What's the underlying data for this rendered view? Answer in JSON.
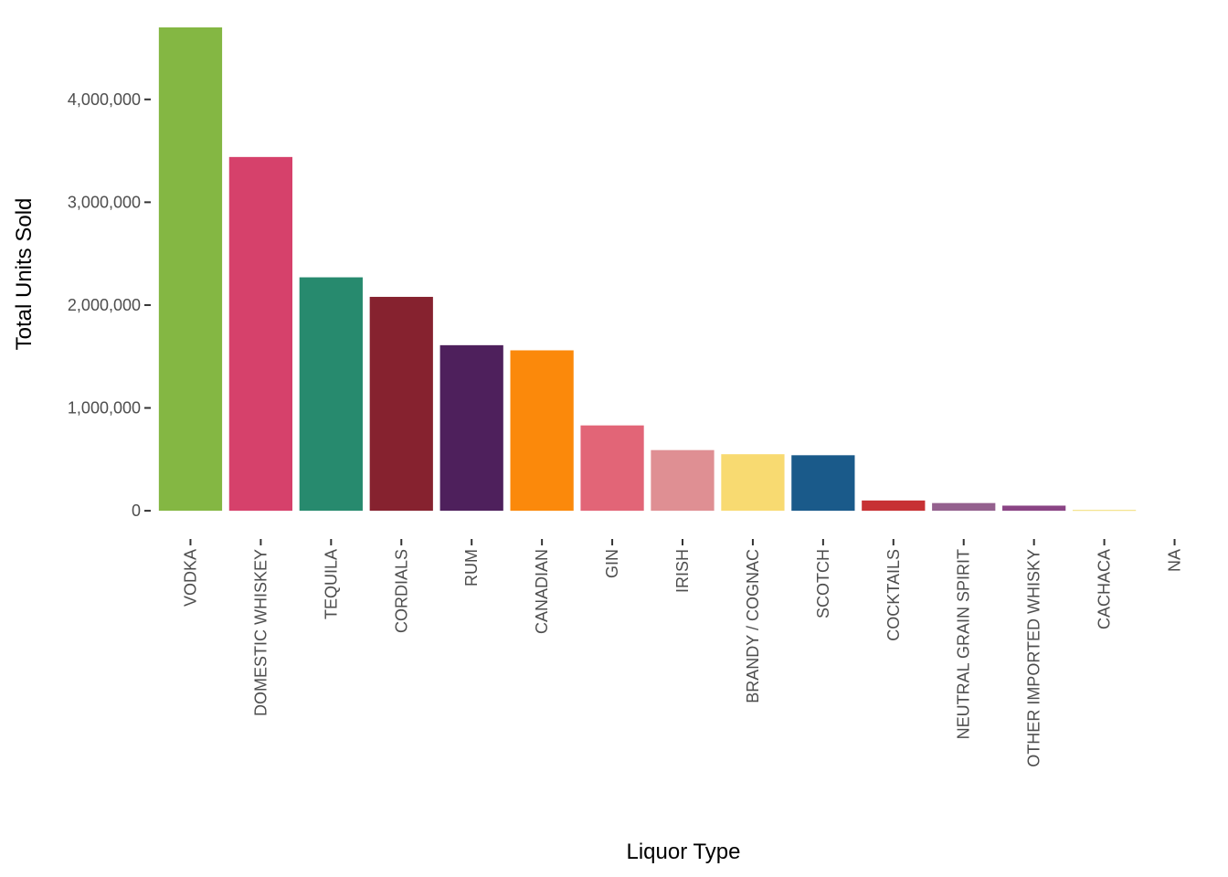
{
  "chart_data": {
    "type": "bar",
    "title": "",
    "xlabel": "Liquor Type",
    "ylabel": "Total Units Sold",
    "ylim": [
      -230000,
      4700000
    ],
    "yticks": [
      0,
      1000000,
      2000000,
      3000000,
      4000000
    ],
    "ytick_labels": [
      "0",
      "1,000,000",
      "2,000,000",
      "3,000,000",
      "4,000,000"
    ],
    "grid": false,
    "legend": "none",
    "categories": [
      "VODKA",
      "DOMESTIC WHISKEY",
      "TEQUILA",
      "CORDIALS",
      "RUM",
      "CANADIAN",
      "GIN",
      "IRISH",
      "BRANDY / COGNAC",
      "SCOTCH",
      "COCKTAILS",
      "NEUTRAL GRAIN SPIRIT",
      "OTHER IMPORTED WHISKY",
      "CACHACA",
      "NA"
    ],
    "values": [
      4700000,
      3440000,
      2270000,
      2080000,
      1610000,
      1560000,
      830000,
      590000,
      550000,
      540000,
      100000,
      75000,
      50000,
      8000,
      0
    ],
    "colors": [
      "#84B743",
      "#D6416B",
      "#278A6E",
      "#86222F",
      "#4E205C",
      "#FB890B",
      "#E26577",
      "#DF8F93",
      "#F8DA71",
      "#1A5A8A",
      "#C73134",
      "#94618E",
      "#8A4484",
      "#F2DE73",
      "#FFFFFF"
    ]
  }
}
